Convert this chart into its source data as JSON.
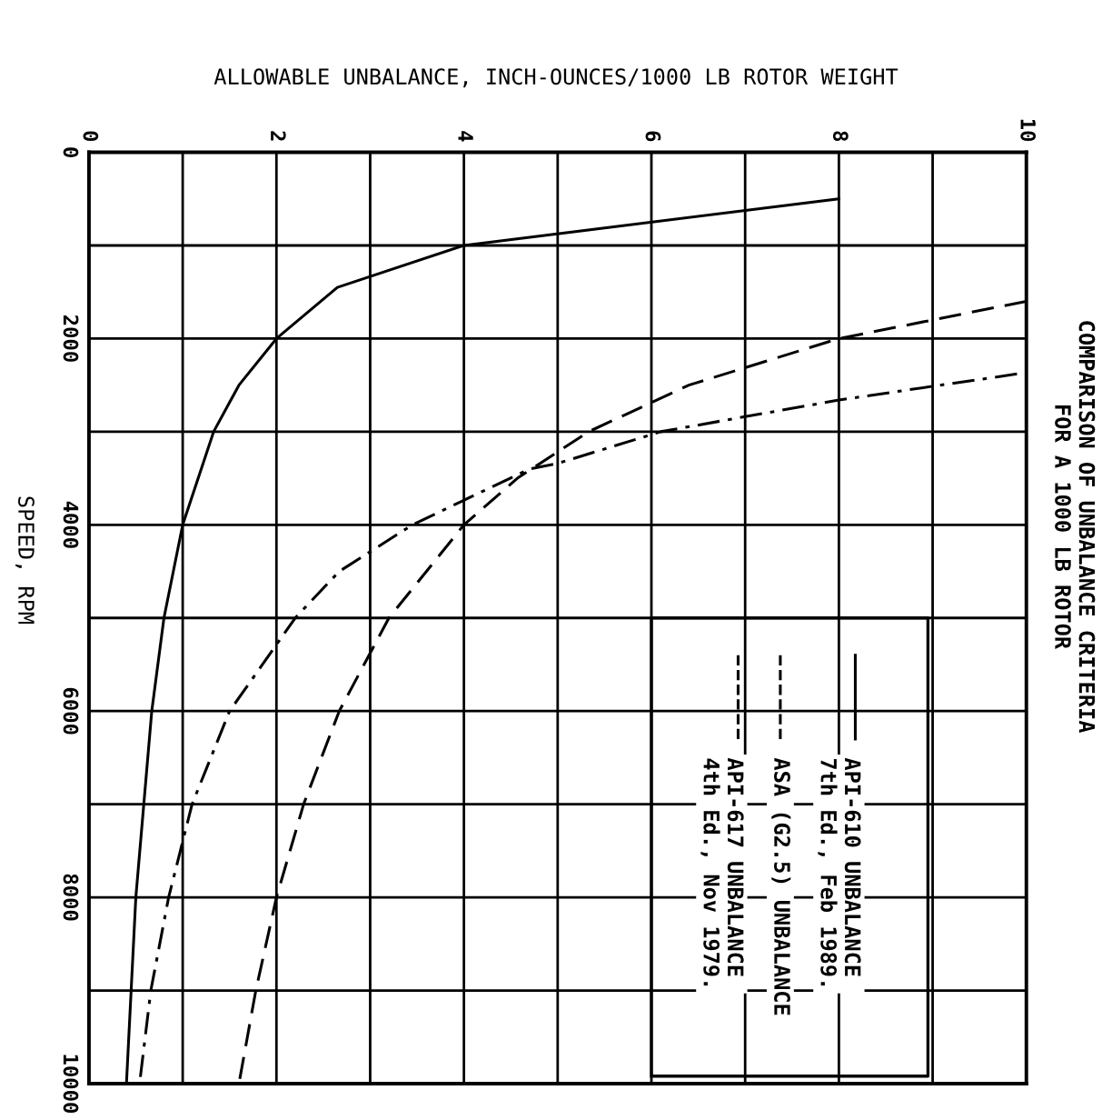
{
  "chart_data": {
    "type": "line",
    "title": "COMPARISON OF UNBALANCE CRITERIA\nFOR A 1000 LB ROTOR",
    "xlabel": "ALLOWABLE UNBALANCE, INCH-OUNCES/1000 LB ROTOR WEIGHT",
    "ylabel": "SPEED, RPM",
    "xlim": [
      0,
      10
    ],
    "ylim": [
      10000,
      0
    ],
    "xticks": [
      0,
      {
        "value": 1,
        "label": null
      },
      2,
      {
        "value": 3,
        "label": null
      },
      4,
      {
        "value": 5,
        "label": null
      },
      6,
      {
        "value": 7,
        "label": null
      },
      8,
      {
        "value": 9,
        "label": null
      },
      10
    ],
    "yticks": [
      0,
      {
        "value": 1000,
        "label": null
      },
      2000,
      {
        "value": 3000,
        "label": null
      },
      4000,
      {
        "value": 5000,
        "label": null
      },
      6000,
      {
        "value": 7000,
        "label": null
      },
      8000,
      {
        "value": 9000,
        "label": null
      },
      10000
    ],
    "grid": true,
    "legend": "bottom right",
    "marker": "none",
    "series": [
      {
        "name": "API-610 UNBALANCE\n7th Ed., Feb 1989.",
        "color": "#000000",
        "line_style": "solid",
        "x": [
          8.0,
          4.0,
          2.65,
          2.0,
          1.6,
          1.33,
          1.0,
          0.8,
          0.67,
          0.5,
          0.4
        ],
        "values": [
          500,
          1000,
          1450,
          2000,
          2500,
          3000,
          4000,
          5000,
          6000,
          8000,
          10000
        ]
      },
      {
        "name": "ASA (G2.5) UNBALANCE",
        "color": "#000000",
        "line_style": "dashed",
        "x": [
          10.0,
          8.0,
          6.4,
          5.33,
          4.57,
          4.0,
          3.2,
          2.67,
          2.29,
          2.0,
          1.78,
          1.6
        ],
        "values": [
          1600,
          2000,
          2500,
          3000,
          3500,
          4000,
          5000,
          6000,
          7000,
          8000,
          9000,
          10000
        ]
      },
      {
        "name": "API-617 UNBALANCE\n4th Ed., Nov 1979.",
        "color": "#000000",
        "line_style": "dashdot",
        "x": [
          9.9,
          8.0,
          6.1,
          5.0,
          4.7,
          3.45,
          2.67,
          2.2,
          1.5,
          1.1,
          0.85,
          0.66,
          0.54
        ],
        "values": [
          2380,
          2660,
          3000,
          3340,
          3400,
          4000,
          4500,
          5000,
          6000,
          7000,
          8000,
          9000,
          10000
        ]
      }
    ]
  }
}
